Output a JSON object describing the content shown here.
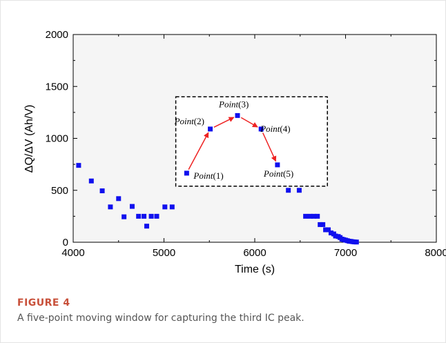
{
  "figure": {
    "label": "FIGURE 4",
    "caption": "A five-point moving window for capturing the third IC peak."
  },
  "colors": {
    "marker": "#1010ee",
    "arrow": "#ee2222",
    "axis": "#000000",
    "plot_bg": "#f5f5f5"
  },
  "chart_data": {
    "type": "scatter",
    "title": "",
    "xlabel": "Time (s)",
    "ylabel": "ΔQ/ΔV (Ah/V)",
    "xlim": [
      4000,
      8000
    ],
    "ylim": [
      0,
      2000
    ],
    "xticks": [
      4000,
      5000,
      6000,
      7000,
      8000
    ],
    "yticks": [
      0,
      500,
      1000,
      1500,
      2000
    ],
    "grid": false,
    "series": [
      {
        "x": [
          4060,
          4200,
          4320,
          4410,
          4500,
          4560,
          4650,
          4720,
          4780,
          4810,
          4860,
          4920,
          5010,
          5090,
          6370,
          6490,
          6560,
          6610,
          6650,
          6690,
          6720,
          6750,
          6780,
          6810,
          6840,
          6870,
          6890,
          6920,
          6940,
          6960,
          6980,
          7000,
          7020,
          7040,
          7060,
          7080,
          7100,
          7120
        ],
        "y": [
          740,
          590,
          495,
          340,
          420,
          245,
          345,
          250,
          250,
          155,
          250,
          250,
          340,
          340,
          500,
          500,
          250,
          250,
          250,
          250,
          170,
          170,
          120,
          120,
          90,
          80,
          60,
          55,
          45,
          30,
          25,
          20,
          15,
          10,
          8,
          5,
          3,
          2
        ]
      }
    ],
    "annotation_box": {
      "x_range": [
        5130,
        6800
      ],
      "y_range": [
        540,
        1400
      ],
      "points": [
        {
          "label": "Point(1)",
          "x": 5250,
          "y": 665
        },
        {
          "label": "Point(2)",
          "x": 5510,
          "y": 1090
        },
        {
          "label": "Point(3)",
          "x": 5810,
          "y": 1220
        },
        {
          "label": "Point(4)",
          "x": 6070,
          "y": 1090
        },
        {
          "label": "Point(5)",
          "x": 6250,
          "y": 745
        }
      ]
    }
  }
}
